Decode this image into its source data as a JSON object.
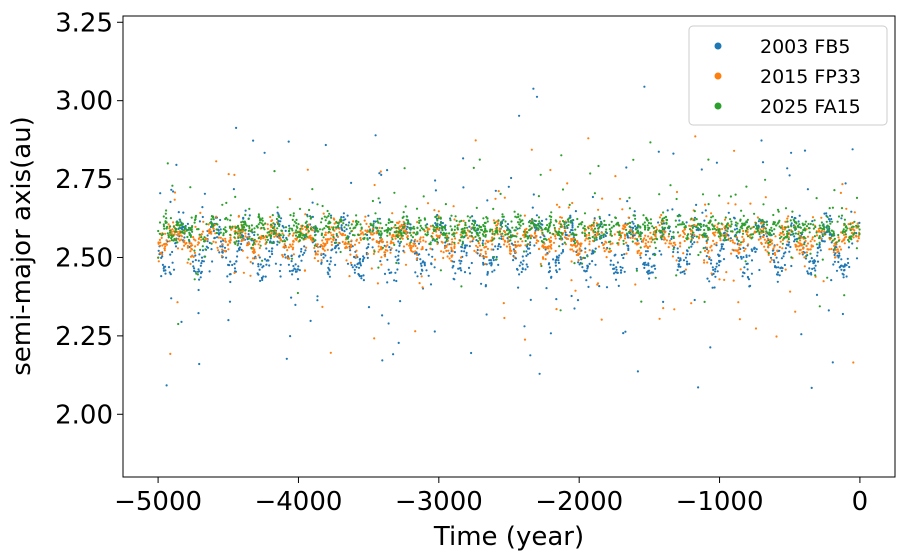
{
  "chart_data": {
    "type": "scatter",
    "title": "",
    "xlabel": "Time (year)",
    "ylabel": "semi-major axis(au)",
    "xlim": [
      -5250,
      250
    ],
    "ylim": [
      1.8,
      3.27
    ],
    "x_ticks": [
      -5000,
      -4000,
      -3000,
      -2000,
      -1000,
      0
    ],
    "x_tick_labels": [
      "−5000",
      "−4000",
      "−3000",
      "−2000",
      "−1000",
      "0"
    ],
    "y_ticks": [
      2.0,
      2.25,
      2.5,
      2.75,
      3.0,
      3.25
    ],
    "y_tick_labels": [
      "2.00",
      "2.25",
      "2.50",
      "2.75",
      "3.00",
      "3.25"
    ],
    "grid": false,
    "legend_position": "top-right",
    "x_range": [
      -5000,
      0
    ],
    "series": [
      {
        "name": "2003 FB5",
        "color": "#1f77b4",
        "mean_a": 2.53,
        "oscillation_amplitude": 0.07,
        "oscillation_period_years": 230,
        "oscillation_phase": 0.0,
        "core_spread": 0.025,
        "scatter_spread": 0.22,
        "scatter_fraction": 0.13
      },
      {
        "name": "2015 FP33",
        "color": "#ff7f0e",
        "mean_a": 2.56,
        "oscillation_amplitude": 0.03,
        "oscillation_period_years": 230,
        "oscillation_phase": 1.5,
        "core_spread": 0.02,
        "scatter_spread": 0.17,
        "scatter_fraction": 0.12
      },
      {
        "name": "2025 FA15",
        "color": "#2ca02c",
        "mean_a": 2.59,
        "oscillation_amplitude": 0.018,
        "oscillation_period_years": 115,
        "oscillation_phase": 0.7,
        "core_spread": 0.018,
        "scatter_spread": 0.1,
        "scatter_fraction": 0.12
      }
    ]
  }
}
